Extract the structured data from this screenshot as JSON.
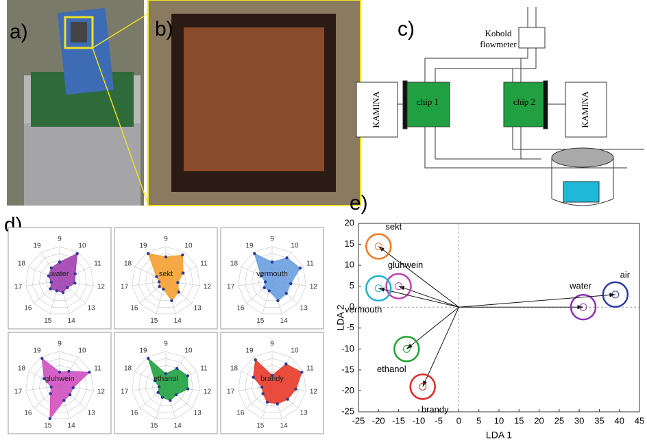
{
  "panel_labels": [
    "a)",
    "b)",
    "c)",
    "d)",
    "e)"
  ],
  "diagram": {
    "flowmeter_lines": [
      "Kobold",
      "flowmeter"
    ],
    "kamina_left": "KAMINA",
    "kamina_right": "KAMINA",
    "chip1": "chip 1",
    "chip2": "chip 2"
  },
  "chart_data": [
    {
      "type": "radar",
      "name": "water",
      "color": "#a040b0",
      "categories": [
        9,
        10,
        11,
        12,
        13,
        14,
        15,
        16,
        17,
        18,
        19
      ],
      "values": [
        0.55,
        0.95,
        0.5,
        0.45,
        0.3,
        0.35,
        0.3,
        0.35,
        0.25,
        0.35,
        0.45
      ],
      "rlim": [
        0,
        1
      ]
    },
    {
      "type": "radar",
      "name": "sekt",
      "color": "#f5a030",
      "categories": [
        9,
        10,
        11,
        12,
        13,
        14,
        15,
        16,
        17,
        18,
        19
      ],
      "values": [
        0.7,
        0.9,
        0.55,
        0.35,
        0.5,
        0.6,
        0.25,
        0.25,
        0.2,
        0.3,
        0.95
      ],
      "rlim": [
        0,
        1
      ]
    },
    {
      "type": "radar",
      "name": "vermouth",
      "color": "#6a9ee0",
      "categories": [
        9,
        10,
        11,
        12,
        13,
        14,
        15,
        16,
        17,
        18,
        19
      ],
      "values": [
        0.55,
        0.8,
        0.9,
        0.55,
        0.55,
        0.6,
        0.3,
        0.3,
        0.2,
        0.35,
        0.95
      ],
      "rlim": [
        0,
        1
      ]
    },
    {
      "type": "radar",
      "name": "gluhwein",
      "color": "#d050c0",
      "categories": [
        9,
        10,
        11,
        12,
        13,
        14,
        15,
        16,
        17,
        18,
        19
      ],
      "values": [
        0.4,
        0.5,
        0.95,
        0.4,
        0.4,
        0.45,
        1.0,
        0.35,
        0.25,
        0.5,
        0.95
      ],
      "rlim": [
        0,
        1
      ]
    },
    {
      "type": "radar",
      "name": "ethanol",
      "color": "#20a040",
      "categories": [
        9,
        10,
        11,
        12,
        13,
        14,
        15,
        16,
        17,
        18,
        19
      ],
      "values": [
        0.35,
        0.6,
        0.7,
        0.65,
        0.4,
        0.45,
        0.35,
        0.3,
        0.2,
        0.35,
        0.95
      ],
      "rlim": [
        0,
        1
      ]
    },
    {
      "type": "radar",
      "name": "brandy",
      "color": "#e83828",
      "categories": [
        9,
        10,
        11,
        12,
        13,
        14,
        15,
        16,
        17,
        18,
        19
      ],
      "values": [
        0.3,
        0.75,
        0.95,
        0.7,
        0.6,
        0.55,
        0.5,
        0.35,
        0.3,
        0.6,
        0.9
      ],
      "rlim": [
        0,
        1
      ]
    },
    {
      "type": "scatter",
      "xlabel": "LDA 1",
      "ylabel": "LDA 2",
      "xlim": [
        -25,
        45
      ],
      "ylim": [
        -25,
        20
      ],
      "xticks": [
        -25,
        -20,
        -15,
        -10,
        -5,
        0,
        5,
        10,
        15,
        20,
        25,
        30,
        35,
        40,
        45
      ],
      "yticks": [
        -25,
        -20,
        -15,
        -10,
        -5,
        0,
        5,
        10,
        15,
        20
      ],
      "series": [
        {
          "name": "sekt",
          "color": "#f07820",
          "x": [
            -20
          ],
          "y": [
            14.5
          ]
        },
        {
          "name": "gluhwein",
          "color": "#c040b0",
          "x": [
            -15
          ],
          "y": [
            5
          ]
        },
        {
          "name": "vermouth",
          "color": "#20b0d0",
          "x": [
            -20
          ],
          "y": [
            4.5
          ]
        },
        {
          "name": "ethanol",
          "color": "#20a030",
          "x": [
            -13
          ],
          "y": [
            -10
          ]
        },
        {
          "name": "brandy",
          "color": "#e02828",
          "x": [
            -9
          ],
          "y": [
            -19
          ]
        },
        {
          "name": "water",
          "color": "#8a30b0",
          "x": [
            31
          ],
          "y": [
            0
          ]
        },
        {
          "name": "air",
          "color": "#283c9c",
          "x": [
            39
          ],
          "y": [
            3
          ]
        }
      ]
    }
  ]
}
